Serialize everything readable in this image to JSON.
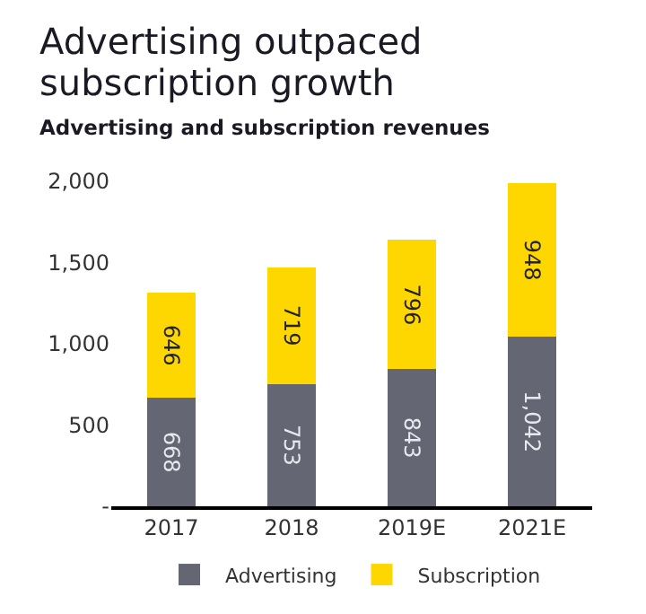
{
  "chart_data": {
    "type": "bar",
    "title": "Advertising outpaced subscription growth",
    "subtitle": "Advertising and subscription revenues",
    "categories": [
      "2017",
      "2018",
      "2019E",
      "2021E"
    ],
    "series": [
      {
        "name": "Advertising",
        "color": "#646673",
        "values": [
          668,
          753,
          843,
          1042
        ],
        "value_labels": [
          "668",
          "753",
          "843",
          "1,042"
        ]
      },
      {
        "name": "Subscription",
        "color": "#ffd700",
        "values": [
          646,
          719,
          796,
          948
        ],
        "value_labels": [
          "646",
          "719",
          "796",
          "948"
        ]
      }
    ],
    "stacked": true,
    "ylim": [
      0,
      2000
    ],
    "yticks": [
      {
        "value": 0,
        "label": "-"
      },
      {
        "value": 500,
        "label": "500"
      },
      {
        "value": 1000,
        "label": "1,000"
      },
      {
        "value": 1500,
        "label": "1,500"
      },
      {
        "value": 2000,
        "label": "2,000"
      }
    ],
    "grid": false,
    "legend": "bottom"
  }
}
